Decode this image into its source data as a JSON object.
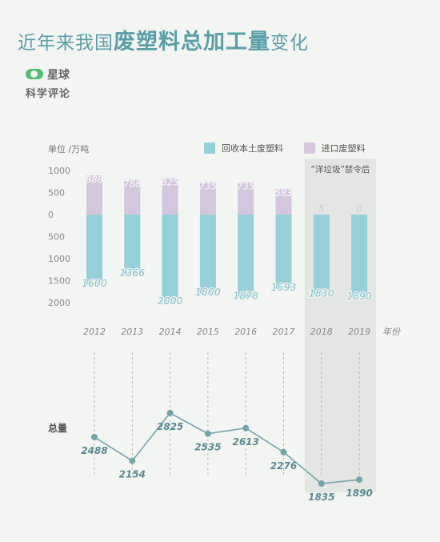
{
  "title": {
    "normal_part": "近年来我国",
    "bold_part": "废塑料总加工量",
    "normal_end": "变化"
  },
  "logo": {
    "line1": "星球",
    "line2": "科学评论",
    "color": "#4fbf73"
  },
  "colors": {
    "domestic": "#95cfd8",
    "imported": "#d3c6dd",
    "title": "#5a9ea8",
    "line": "#73a5ab",
    "highlight_band": "#e3e6e2"
  },
  "chart_data": {
    "type": "bar",
    "unit_label": "单位 /万吨",
    "x_suffix": "年份",
    "categories": [
      "2012",
      "2013",
      "2014",
      "2015",
      "2016",
      "2017",
      "2018",
      "2019"
    ],
    "y_ticks_upper": [
      "1000",
      "500",
      "0"
    ],
    "y_ticks_lower": [
      "500",
      "1000",
      "1500",
      "2000"
    ],
    "series": [
      {
        "name": "回收本土废塑料",
        "values": [
          1600,
          1366,
          2000,
          1800,
          1878,
          1693,
          1830,
          1890
        ],
        "direction": "down"
      },
      {
        "name": "进口废塑料",
        "values": [
          888,
          788,
          825,
          735,
          735,
          583,
          5,
          0
        ],
        "direction": "up"
      }
    ],
    "ylim_up": [
      0,
      1000
    ],
    "ylim_down": [
      0,
      2000
    ],
    "highlight": {
      "from": "2018",
      "to": "2019",
      "label": "“洋垃圾”禁令后"
    },
    "total": {
      "label": "总量",
      "values": [
        2488,
        2154,
        2825,
        2535,
        2613,
        2276,
        1835,
        1890
      ]
    }
  }
}
